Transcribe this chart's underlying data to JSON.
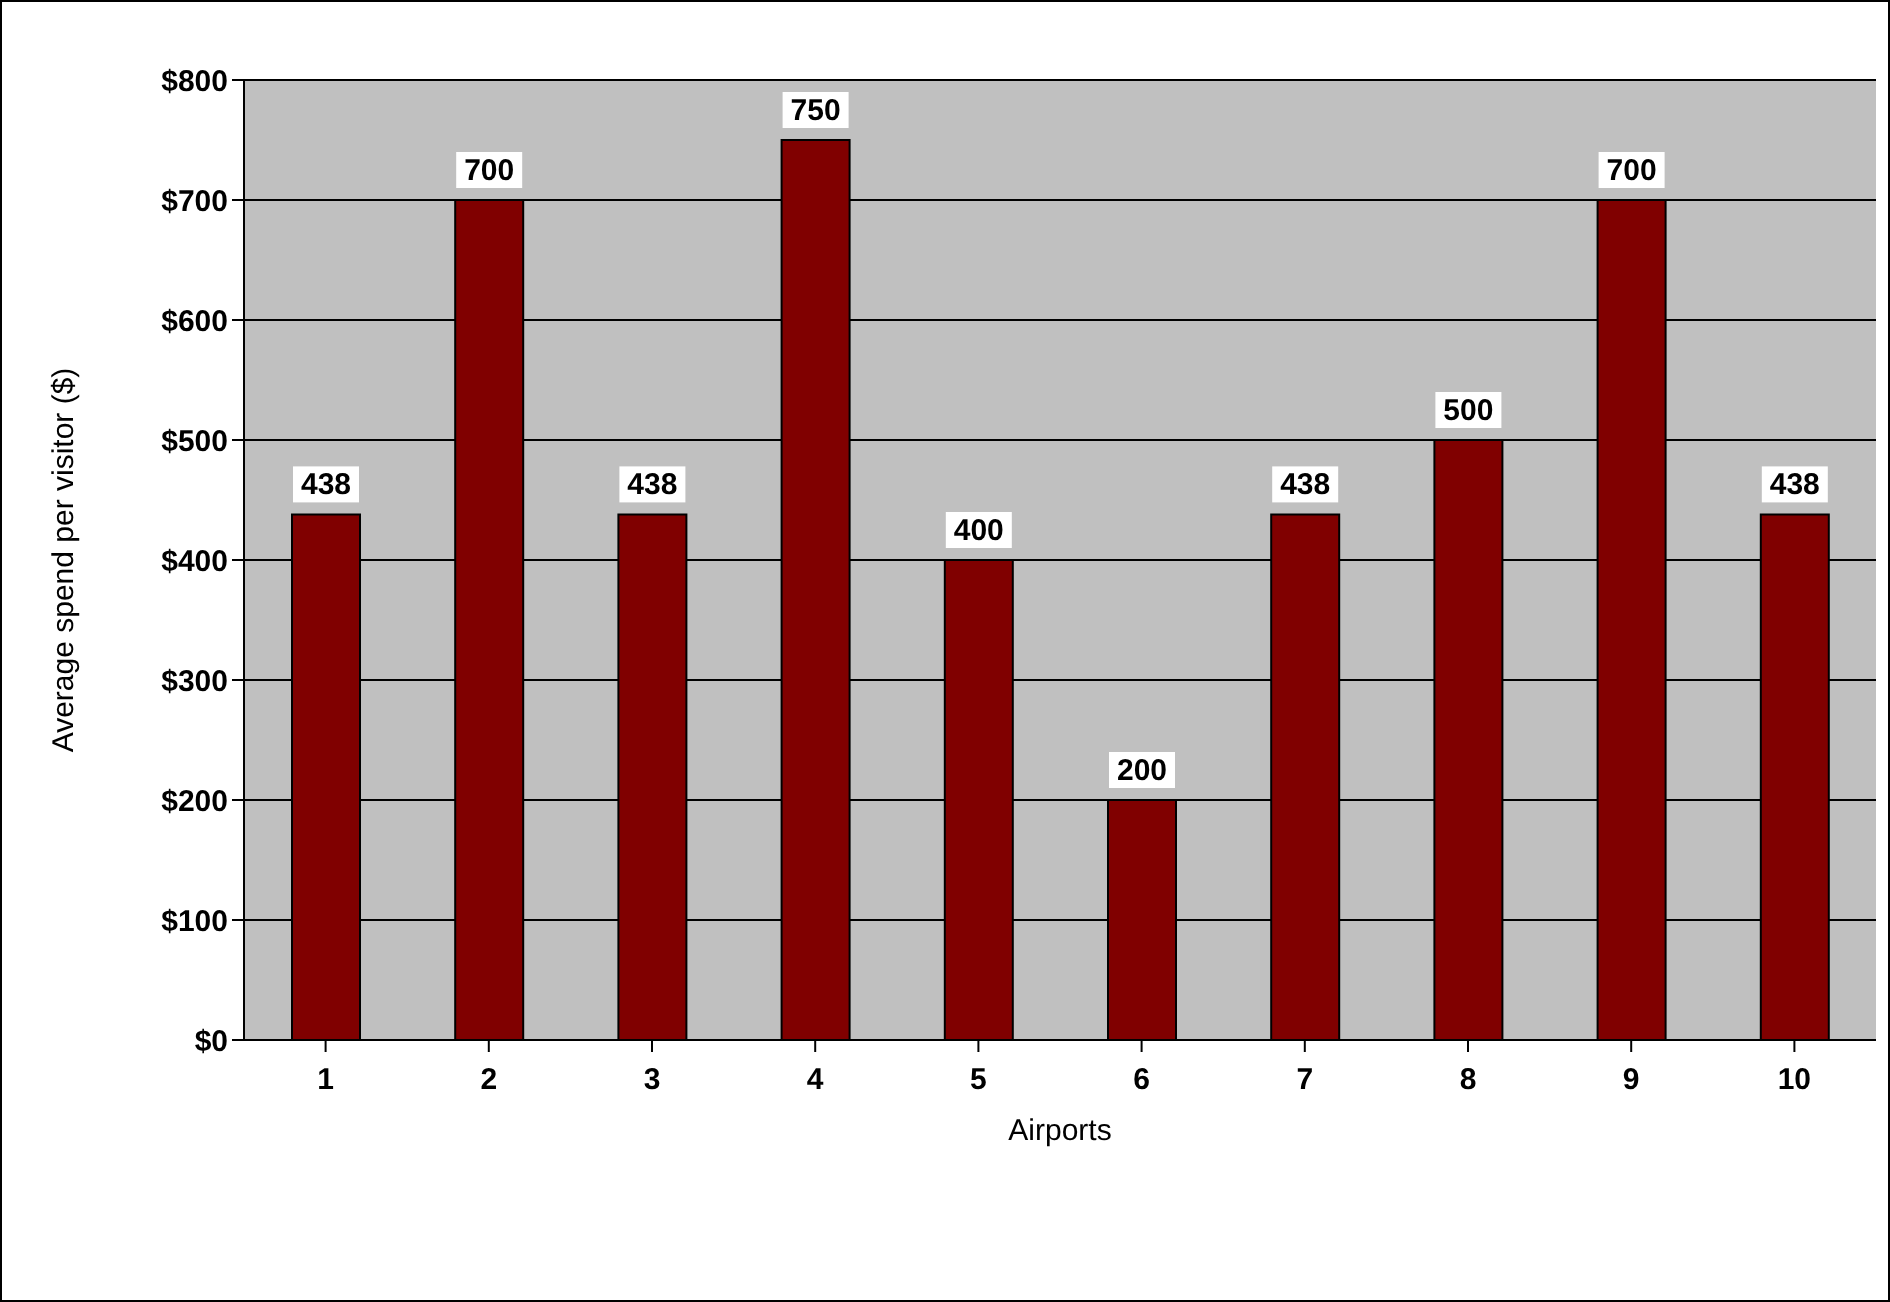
{
  "chart_data": {
    "type": "bar",
    "xlabel": "Airports",
    "ylabel": "Average spend per visitor ($)",
    "categories": [
      "1",
      "2",
      "3",
      "4",
      "5",
      "6",
      "7",
      "8",
      "9",
      "10"
    ],
    "values": [
      438,
      700,
      438,
      750,
      400,
      200,
      438,
      500,
      700,
      438
    ],
    "color": "#800000",
    "data_labels": true,
    "grid": "y",
    "ylim": [
      0,
      800
    ],
    "yticks": [
      {
        "value": 0,
        "label": "$0"
      },
      {
        "value": 100,
        "label": "$100"
      },
      {
        "value": 200,
        "label": "$200"
      },
      {
        "value": 300,
        "label": "$300"
      },
      {
        "value": 400,
        "label": "$400"
      },
      {
        "value": 500,
        "label": "$500"
      },
      {
        "value": 600,
        "label": "$600"
      },
      {
        "value": 700,
        "label": "$700"
      },
      {
        "value": 800,
        "label": "$800"
      }
    ]
  }
}
